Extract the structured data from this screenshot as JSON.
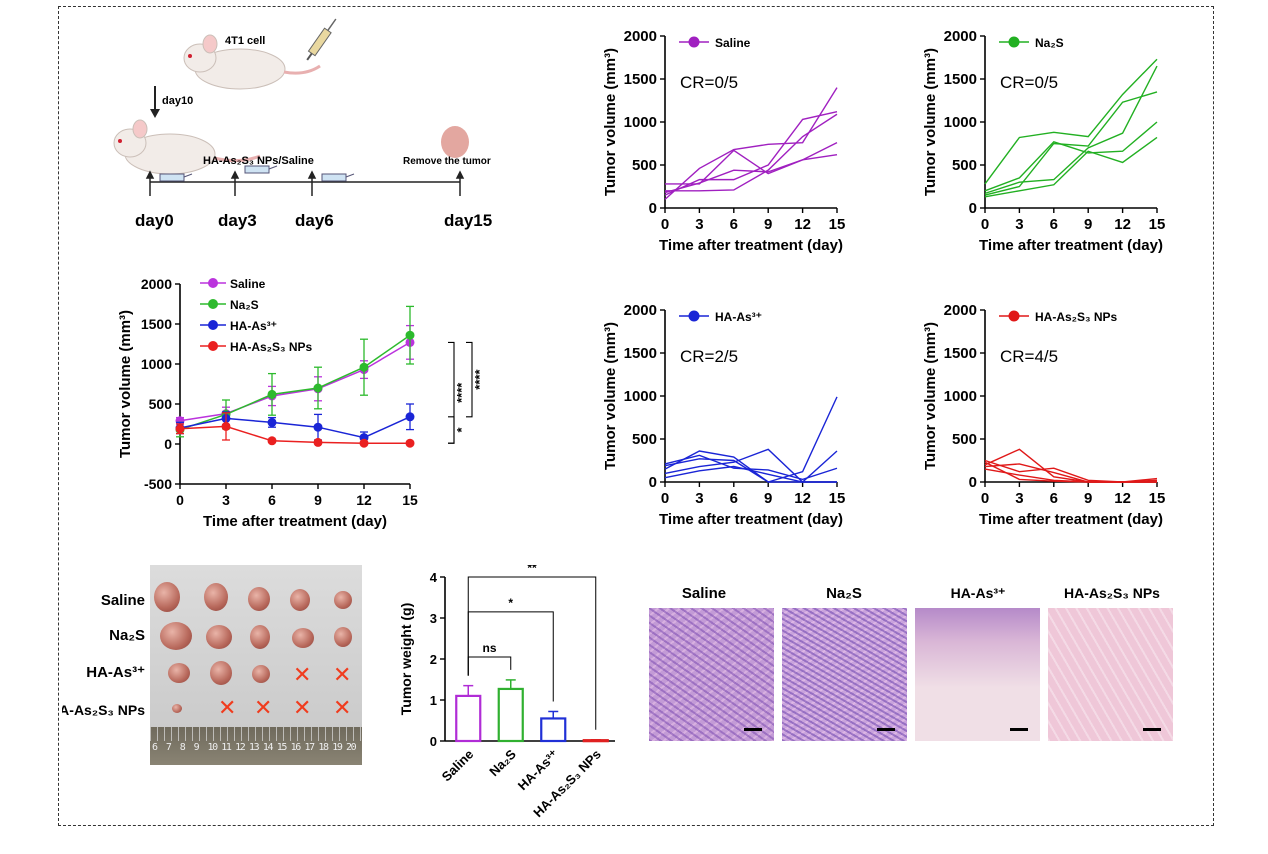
{
  "schematic": {
    "cell_label": "4T1 cell",
    "day_arrow_label": "day10",
    "treatment_label": "HA-As₂S₃ NPs/Saline",
    "remove_label": "Remove the tumor",
    "days": [
      "day0",
      "day3",
      "day6",
      "day15"
    ]
  },
  "chart_data": [
    {
      "id": "mean-growth",
      "type": "line",
      "xlabel": "Time after treatment (day)",
      "ylabel": "Tumor volume (mm³)",
      "x": [
        0,
        3,
        6,
        9,
        12,
        15
      ],
      "xlim": [
        0,
        15
      ],
      "ylim": [
        -500,
        2000
      ],
      "yticks": [
        -500,
        0,
        500,
        1000,
        1500,
        2000
      ],
      "legend_position": "top-left",
      "series": [
        {
          "name": "Saline",
          "color": "#bb33dd",
          "values": [
            290,
            380,
            600,
            690,
            930,
            1270
          ],
          "err": [
            40,
            80,
            120,
            150,
            110,
            210
          ]
        },
        {
          "name": "Na₂S",
          "color": "#2dba2d",
          "values": [
            180,
            370,
            620,
            700,
            960,
            1360
          ],
          "err": [
            90,
            180,
            260,
            260,
            350,
            360
          ]
        },
        {
          "name": "HA-As³⁺",
          "color": "#1a25d6",
          "values": [
            200,
            320,
            270,
            210,
            80,
            340
          ],
          "err": [
            70,
            80,
            60,
            160,
            70,
            160
          ]
        },
        {
          "name": "HA-As₂S₃ NPs",
          "color": "#ea2020",
          "values": [
            190,
            220,
            40,
            20,
            10,
            10
          ],
          "err": [
            60,
            170,
            20,
            20,
            10,
            10
          ]
        }
      ],
      "significance": [
        {
          "pair": [
            "Saline",
            "HA-As₂S₃ NPs"
          ],
          "label": "****"
        },
        {
          "pair": [
            "Saline",
            "HA-As³⁺"
          ],
          "label": "****"
        },
        {
          "pair": [
            "HA-As³⁺",
            "HA-As₂S₃ NPs"
          ],
          "label": "*"
        }
      ]
    },
    {
      "id": "saline-individual",
      "type": "line",
      "legend": "Saline",
      "annotation": "CR=0/5",
      "color": "#a020c0",
      "xlabel": "Time after treatment (day)",
      "ylabel": "Tumor volume (mm³)",
      "x": [
        0,
        3,
        6,
        9,
        12,
        15
      ],
      "ylim": [
        0,
        2000
      ],
      "yticks": [
        0,
        500,
        1000,
        1500,
        2000
      ],
      "series": [
        [
          100,
          460,
          680,
          740,
          760,
          1400
        ],
        [
          150,
          330,
          330,
          500,
          1030,
          1120
        ],
        [
          200,
          200,
          210,
          440,
          830,
          1090
        ],
        [
          180,
          290,
          440,
          420,
          560,
          620
        ],
        [
          280,
          280,
          670,
          400,
          560,
          760
        ]
      ]
    },
    {
      "id": "na2s-individual",
      "type": "line",
      "legend": "Na₂S",
      "annotation": "CR=0/5",
      "color": "#22b022",
      "xlabel": "Time after treatment (day)",
      "ylabel": "Tumor volume (mm³)",
      "x": [
        0,
        3,
        6,
        9,
        12,
        15
      ],
      "ylim": [
        0,
        2000
      ],
      "yticks": [
        0,
        500,
        1000,
        1500,
        2000
      ],
      "series": [
        [
          280,
          820,
          880,
          830,
          1320,
          1730
        ],
        [
          170,
          300,
          330,
          700,
          870,
          1650
        ],
        [
          150,
          250,
          750,
          720,
          1230,
          1350
        ],
        [
          200,
          350,
          770,
          640,
          660,
          1000
        ],
        [
          130,
          200,
          270,
          660,
          530,
          820
        ]
      ]
    },
    {
      "id": "ha-as-individual",
      "type": "line",
      "legend": "HA-As³⁺",
      "annotation": "CR=2/5",
      "color": "#1a25d6",
      "xlabel": "Time after treatment (day)",
      "ylabel": "Tumor volume (mm³)",
      "x": [
        0,
        3,
        6,
        9,
        12,
        15
      ],
      "ylim": [
        0,
        2000
      ],
      "yticks": [
        0,
        500,
        1000,
        1500,
        2000
      ],
      "series": [
        [
          150,
          360,
          290,
          0,
          120,
          990
        ],
        [
          100,
          180,
          230,
          380,
          0,
          360
        ],
        [
          210,
          310,
          160,
          140,
          30,
          160
        ],
        [
          50,
          130,
          180,
          90,
          0,
          0
        ],
        [
          190,
          270,
          250,
          0,
          0,
          0
        ]
      ]
    },
    {
      "id": "nps-individual",
      "type": "line",
      "legend": "HA-As₂S₃ NPs",
      "annotation": "CR=4/5",
      "color": "#e01818",
      "xlabel": "Time after treatment (day)",
      "ylabel": "Tumor volume (mm³)",
      "x": [
        0,
        3,
        6,
        9,
        12,
        15
      ],
      "ylim": [
        0,
        2000
      ],
      "yticks": [
        0,
        500,
        1000,
        1500,
        2000
      ],
      "series": [
        [
          200,
          380,
          60,
          0,
          0,
          40
        ],
        [
          250,
          120,
          160,
          20,
          0,
          0
        ],
        [
          150,
          80,
          20,
          0,
          0,
          0
        ],
        [
          180,
          210,
          110,
          0,
          0,
          20
        ],
        [
          230,
          30,
          10,
          0,
          0,
          0
        ]
      ]
    },
    {
      "id": "tumor-weight",
      "type": "bar",
      "categories": [
        "Saline",
        "Na₂S",
        "HA-As³⁺",
        "HA-As₂S₃ NPs"
      ],
      "values": [
        1.1,
        1.27,
        0.55,
        0.02
      ],
      "err": [
        0.25,
        0.22,
        0.17,
        0.01
      ],
      "colors": [
        "#b02cd6",
        "#30b030",
        "#2030d6",
        "#e02020"
      ],
      "ylabel": "Tumor weight (g)",
      "ylim": [
        0,
        4
      ],
      "yticks": [
        0,
        1,
        2,
        3,
        4
      ],
      "significance": [
        {
          "pair": [
            "Saline",
            "Na₂S"
          ],
          "label": "ns"
        },
        {
          "pair": [
            "Saline",
            "HA-As³⁺"
          ],
          "label": "*"
        },
        {
          "pair": [
            "Saline",
            "HA-As₂S₃ NPs"
          ],
          "label": "**"
        }
      ]
    }
  ],
  "photo": {
    "rows": [
      "Saline",
      "Na₂S",
      "HA-As³⁺",
      "HA-As₂S₃ NPs"
    ],
    "ruler_text": "6  7  8  9  10 11 12 13 14 15 16 17 18 19 20",
    "x_mark": "✕"
  },
  "histology": {
    "labels": [
      "Saline",
      "Na₂S",
      "HA-As³⁺",
      "HA-As₂S₃ NPs"
    ]
  }
}
